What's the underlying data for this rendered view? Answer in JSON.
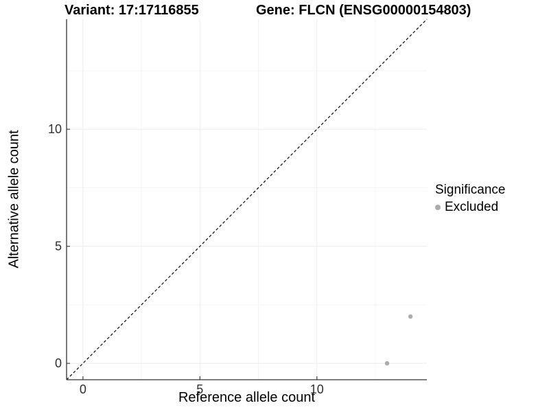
{
  "chart_data": {
    "type": "scatter",
    "title_left": "Variant: 17:17116855",
    "title_right": "Gene: FLCN (ENSG00000154803)",
    "xlabel": "Reference allele count",
    "ylabel": "Alternative allele count",
    "xlim": [
      -0.7,
      14.7
    ],
    "ylim": [
      -0.7,
      14.7
    ],
    "x_major_ticks": [
      0,
      5,
      10
    ],
    "y_major_ticks": [
      0,
      5,
      10
    ],
    "x_minor_ticks": [
      2.5,
      7.5,
      12.5
    ],
    "y_minor_ticks": [
      2.5,
      7.5,
      12.5
    ],
    "grid": "major and minor gridlines, white panel",
    "identity_line": {
      "equation": "y = x",
      "style": "dashed",
      "color": "#000000"
    },
    "series": [
      {
        "name": "Excluded",
        "marker": "circle",
        "color": "#ababab",
        "points": [
          [
            13,
            0
          ],
          [
            14,
            2
          ]
        ]
      }
    ],
    "legend": {
      "position": "right",
      "title": "Significance",
      "entries": [
        {
          "label": "Excluded",
          "color": "#ababab"
        }
      ]
    },
    "colors": {
      "background": "#ffffff",
      "grid_major": "#ececec",
      "grid_minor": "#f4f4f4",
      "axis_line": "#333333",
      "tick_mark": "#404040",
      "tick_label": "#303030"
    }
  }
}
